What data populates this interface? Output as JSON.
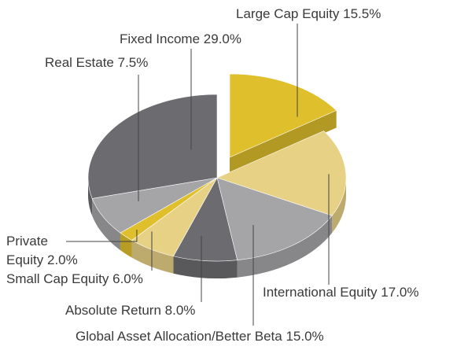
{
  "chart_data": {
    "type": "pie",
    "categories": [
      "Large Cap Equity",
      "International Equity",
      "Global Asset Allocation/Better Beta",
      "Absolute Return",
      "Small Cap Equity",
      "Private Equity",
      "Real Estate",
      "Fixed Income"
    ],
    "values": [
      15.5,
      17.0,
      15.0,
      8.0,
      6.0,
      2.0,
      7.5,
      29.0
    ],
    "value_labels": [
      "15.5%",
      "17.0%",
      "15.0%",
      "8.0%",
      "6.0%",
      "2.0%",
      "7.5%",
      "29.0%"
    ],
    "colors": [
      "#dfbf2c",
      "#e6d185",
      "#a5a5a8",
      "#6c6c70",
      "#e6d185",
      "#dfbf2c",
      "#a5a5a8",
      "#6c6c70"
    ]
  }
}
